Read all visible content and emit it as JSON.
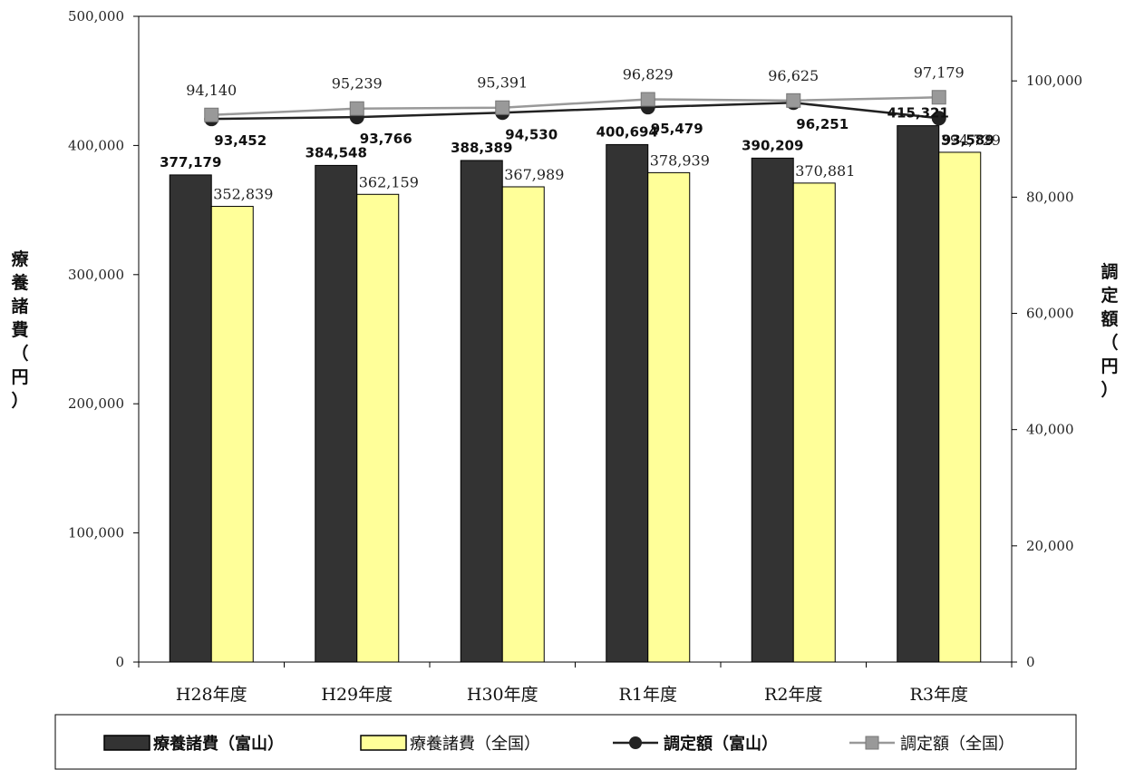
{
  "chart_data": {
    "type": "bar",
    "categories": [
      "H28年度",
      "H29年度",
      "H30年度",
      "R1年度",
      "R2年度",
      "R3年度"
    ],
    "y_left": {
      "label": "療養諸費（円）",
      "ylim": [
        0,
        500000
      ],
      "ticks": [
        "0",
        "100,000",
        "200,000",
        "300,000",
        "400,000",
        "500,000"
      ]
    },
    "y_right": {
      "label": "調定額（円）",
      "ylim": [
        0,
        111111
      ],
      "ticks": [
        "0",
        "20,000",
        "40,000",
        "60,000",
        "80,000",
        "100,000"
      ]
    },
    "series": [
      {
        "name": "療養諸費（富山）",
        "kind": "bar",
        "axis": "left",
        "color": "#333333",
        "values": [
          377179,
          384548,
          388389,
          400694,
          390209,
          415321
        ],
        "labels": [
          "377,179",
          "384,548",
          "388,389",
          "400,694",
          "390,209",
          "415,321"
        ]
      },
      {
        "name": "療養諸費（全国）",
        "kind": "bar",
        "axis": "left",
        "color": "#ffff99",
        "values": [
          352839,
          362159,
          367989,
          378939,
          370881,
          394729
        ],
        "labels": [
          "352,839",
          "362,159",
          "367,989",
          "378,939",
          "370,881",
          "394,729"
        ]
      },
      {
        "name": "調定額（富山）",
        "kind": "line",
        "axis": "right",
        "color": "#222222",
        "marker": "circle",
        "values": [
          93452,
          93766,
          94530,
          95479,
          96251,
          93589
        ],
        "labels": [
          "93,452",
          "93,766",
          "94,530",
          "95,479",
          "96,251",
          "93,589"
        ]
      },
      {
        "name": "調定額（全国）",
        "kind": "line",
        "axis": "right",
        "color": "#999999",
        "marker": "square",
        "values": [
          94140,
          95239,
          95391,
          96829,
          96625,
          97179
        ],
        "labels": [
          "94,140",
          "95,239",
          "95,391",
          "96,829",
          "96,625",
          "97,179"
        ]
      }
    ],
    "grid": false,
    "legend_position": "bottom"
  }
}
